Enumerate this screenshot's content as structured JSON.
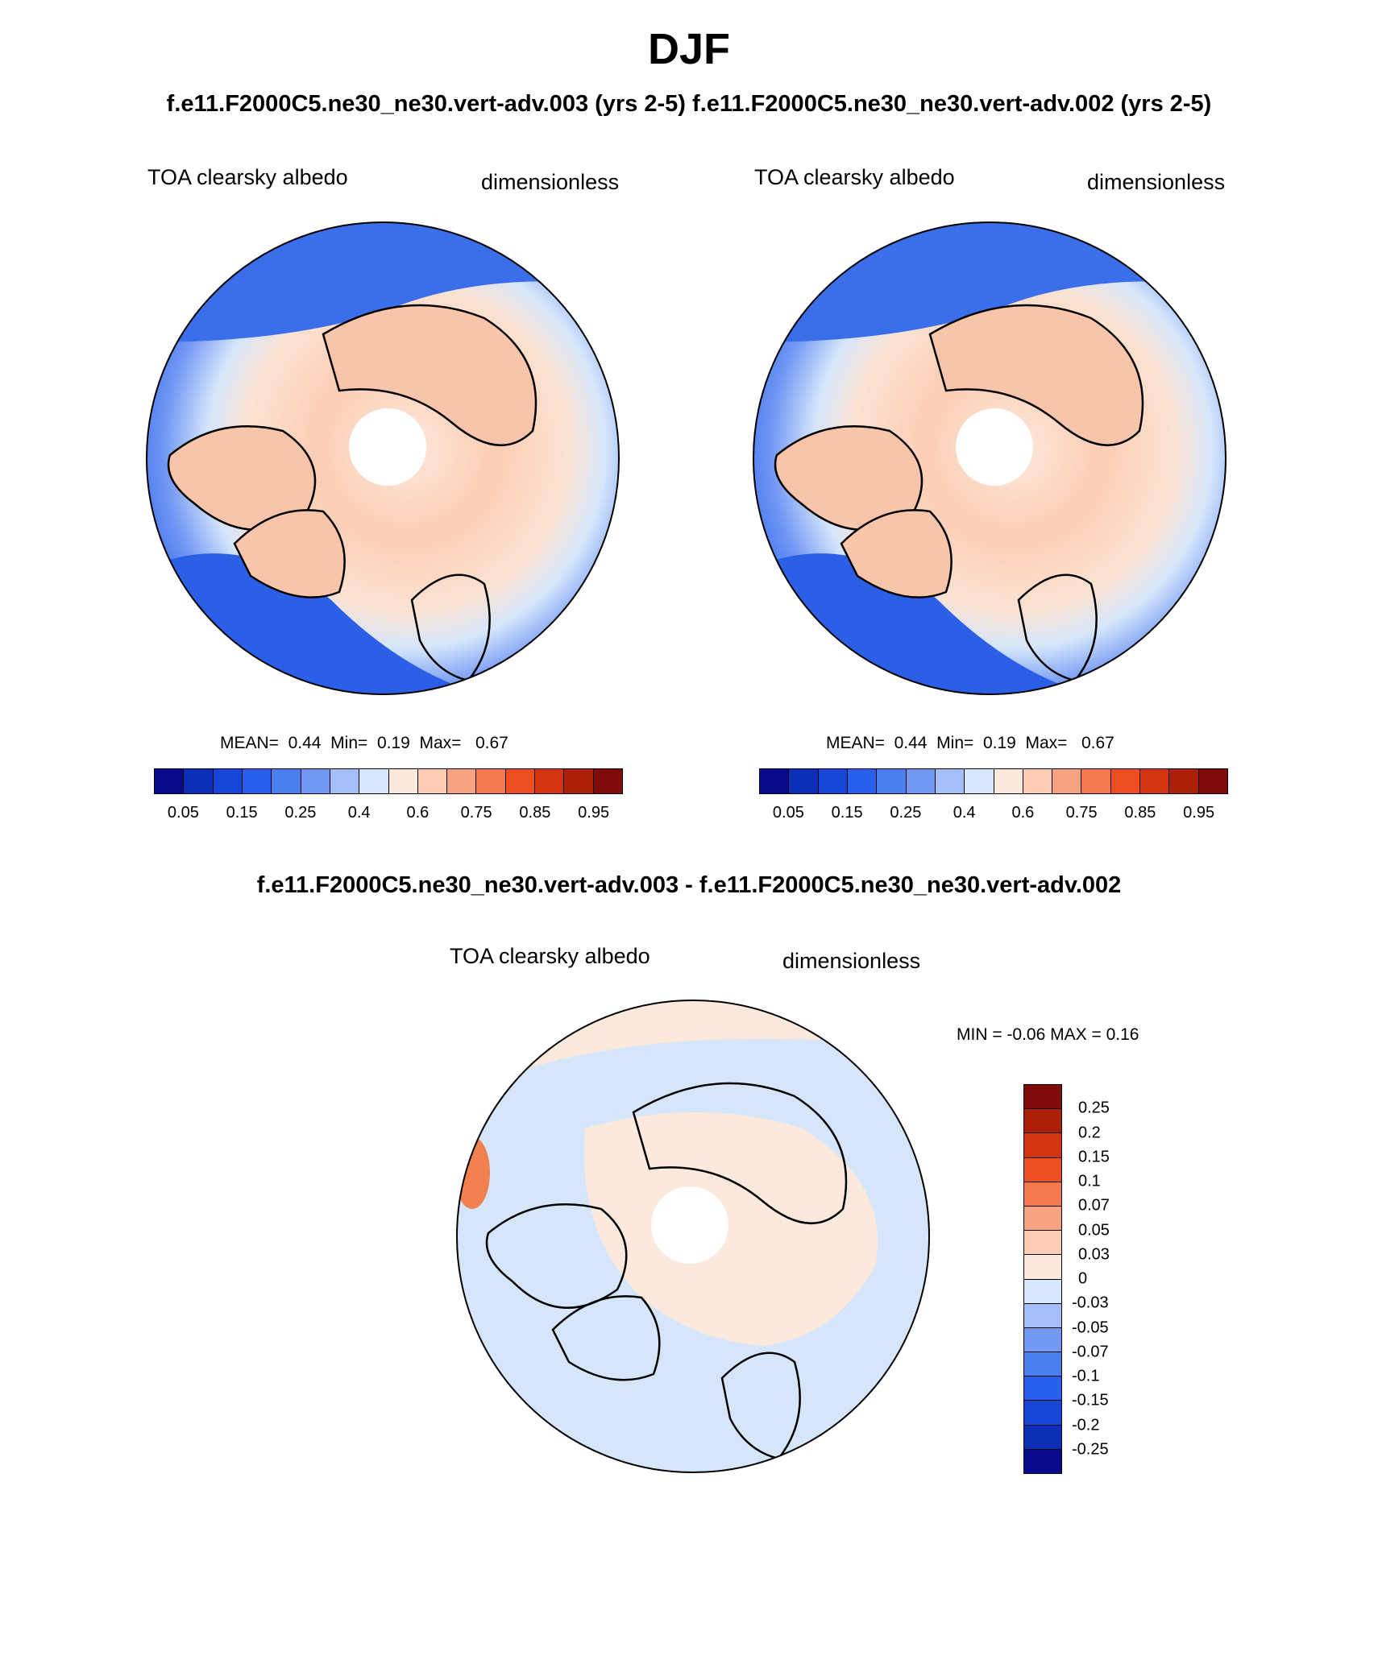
{
  "season_title": "DJF",
  "left_panel": {
    "case_title": "f.e11.F2000C5.ne30_ne30.vert-adv.003 (yrs 2-5)",
    "variable": "TOA clearsky albedo",
    "units": "dimensionless",
    "stats": {
      "mean_label": "MEAN=",
      "mean": "0.44",
      "min_label": "Min=",
      "min": "0.19",
      "max_label": "Max=",
      "max": "0.67"
    }
  },
  "right_panel": {
    "case_title": "f.e11.F2000C5.ne30_ne30.vert-adv.002 (yrs 2-5)",
    "variable": "TOA clearsky albedo",
    "units": "dimensionless",
    "stats": {
      "mean_label": "MEAN=",
      "mean": "0.44",
      "min_label": "Min=",
      "min": "0.19",
      "max_label": "Max=",
      "max": "0.67"
    }
  },
  "diff_panel": {
    "title": "f.e11.F2000C5.ne30_ne30.vert-adv.003 - f.e11.F2000C5.ne30_ne30.vert-adv.002",
    "variable": "TOA clearsky albedo",
    "units": "dimensionless",
    "stats_text": "MIN =  -0.06 MAX =   0.16"
  },
  "colorbars": {
    "abs_colors": [
      "#08088c",
      "#0c2fb8",
      "#1645d8",
      "#2660ec",
      "#4a7ff2",
      "#7499f4",
      "#a3bff8",
      "#d5e6fb",
      "#fde9dc",
      "#fccdb3",
      "#f8a37f",
      "#f47a4e",
      "#ee4e22",
      "#d53410",
      "#ad2008",
      "#7f0b0b"
    ],
    "abs_ticks": [
      "0.05",
      "0.15",
      "0.25",
      "0.4",
      "0.6",
      "0.75",
      "0.85",
      "0.95"
    ],
    "diff_colors": [
      "#7f0b0b",
      "#ad2008",
      "#d53410",
      "#ee4e22",
      "#f47a4e",
      "#f8a37f",
      "#fccdb3",
      "#fde9dc",
      "#d5e6fb",
      "#a3bff8",
      "#7499f4",
      "#4a7ff2",
      "#2660ec",
      "#1645d8",
      "#0c2fb8",
      "#08088c"
    ],
    "diff_ticks": [
      "0.25",
      "0.2",
      "0.15",
      "0.1",
      "0.07",
      "0.05",
      "0.03",
      "0",
      "-0.03",
      "-0.05",
      "-0.07",
      "-0.1",
      "-0.15",
      "-0.2",
      "-0.25"
    ]
  },
  "map_colors": {
    "deep_blue": "#2a5fe6",
    "mid_blue": "#4d7fee",
    "light_blue": "#a3bff8",
    "pale_blue": "#d5e6fb",
    "peach": "#f8c5ab",
    "pale_peach": "#fde9dc",
    "orange": "#f08050",
    "red_orange": "#ee4e22"
  }
}
